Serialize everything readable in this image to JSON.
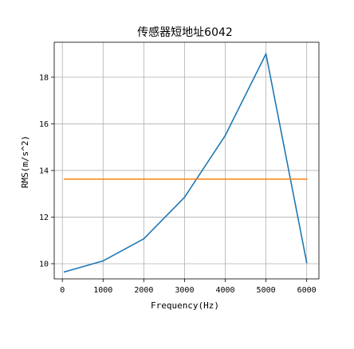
{
  "chart_data": {
    "type": "line",
    "title": "传感器短地址6042",
    "xlabel": "Frequency(Hz)",
    "ylabel": "RMS(m/s^2)",
    "xlim": [
      -200,
      6300
    ],
    "ylim": [
      9.35,
      19.5
    ],
    "x_ticks": [
      0,
      1000,
      2000,
      3000,
      4000,
      5000,
      6000
    ],
    "y_ticks": [
      10,
      12,
      14,
      16,
      18
    ],
    "grid": true,
    "legend": "none",
    "series": [
      {
        "color": "#1f77b4",
        "x": [
          50,
          1000,
          2000,
          3000,
          4000,
          5000,
          6000
        ],
        "values": [
          9.65,
          10.12,
          11.07,
          12.85,
          15.5,
          19.0,
          10.05
        ]
      },
      {
        "color": "#ff7f0e",
        "x": [
          50,
          6000
        ],
        "values": [
          13.63,
          13.63
        ]
      }
    ]
  }
}
